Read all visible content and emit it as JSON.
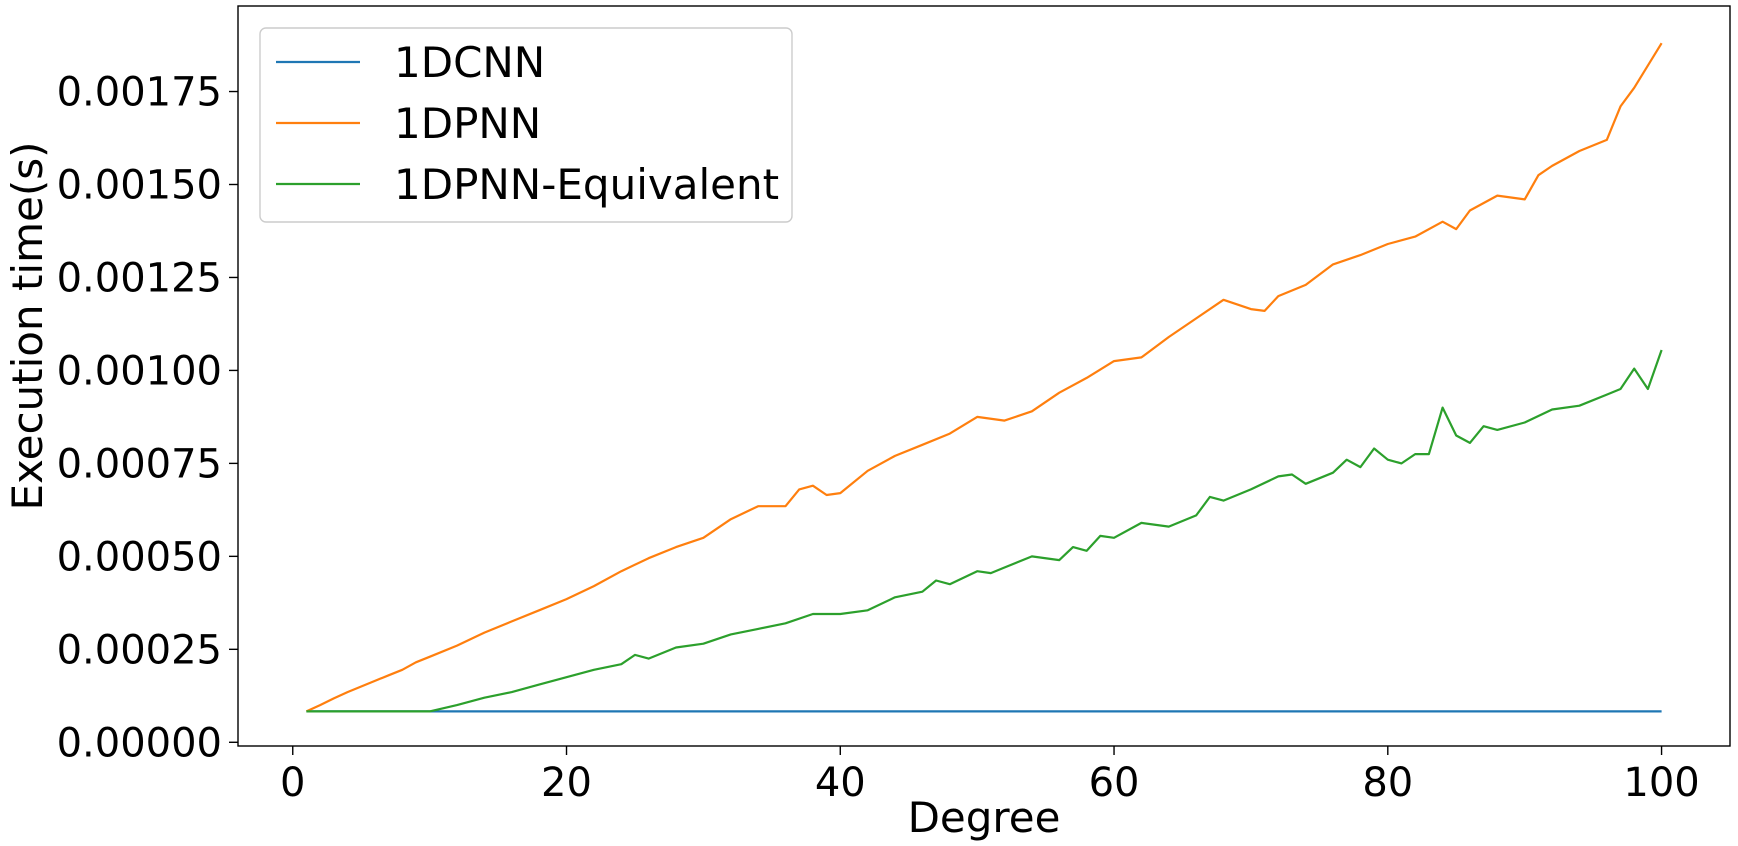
{
  "chart_data": {
    "type": "line",
    "title": "",
    "xlabel": "Degree",
    "ylabel": "Execution time(s)",
    "xlim": [
      -4,
      105
    ],
    "ylim": [
      -1e-05,
      0.00198
    ],
    "x_ticks": [
      0,
      20,
      40,
      60,
      80,
      100
    ],
    "x_tick_labels": [
      "0",
      "20",
      "40",
      "60",
      "80",
      "100"
    ],
    "y_ticks": [
      0,
      0.00025,
      0.0005,
      0.00075,
      0.001,
      0.00125,
      0.0015,
      0.00175
    ],
    "y_tick_labels": [
      "0.00000",
      "0.00025",
      "0.00050",
      "0.00075",
      "0.00100",
      "0.00125",
      "0.00150",
      "0.00175"
    ],
    "grid": false,
    "legend_position": "top-left",
    "series": [
      {
        "name": "1DCNN",
        "color": "#1f77b4",
        "x": [
          1,
          100
        ],
        "y": [
          8.3e-05,
          8.3e-05
        ]
      },
      {
        "name": "1DPNN",
        "color": "#ff7f0e",
        "x": [
          1,
          2,
          3,
          4,
          5,
          6,
          7,
          8,
          9,
          10,
          12,
          14,
          16,
          18,
          20,
          22,
          24,
          26,
          28,
          30,
          32,
          34,
          36,
          37,
          38,
          39,
          40,
          42,
          44,
          46,
          48,
          50,
          52,
          54,
          56,
          58,
          60,
          62,
          64,
          66,
          68,
          70,
          71,
          72,
          74,
          76,
          78,
          80,
          82,
          84,
          85,
          86,
          88,
          90,
          91,
          92,
          94,
          96,
          97,
          98,
          100
        ],
        "y": [
          8.3e-05,
          0.0001,
          0.000118,
          0.000135,
          0.00015,
          0.000165,
          0.00018,
          0.000195,
          0.000215,
          0.00023,
          0.00026,
          0.000295,
          0.000325,
          0.000355,
          0.000385,
          0.00042,
          0.00046,
          0.000495,
          0.000525,
          0.00055,
          0.0006,
          0.000635,
          0.000635,
          0.00068,
          0.00069,
          0.000665,
          0.00067,
          0.00073,
          0.00077,
          0.0008,
          0.00083,
          0.000875,
          0.000865,
          0.00089,
          0.00094,
          0.00098,
          0.001025,
          0.001035,
          0.00109,
          0.00114,
          0.00119,
          0.001165,
          0.00116,
          0.0012,
          0.00123,
          0.001285,
          0.00131,
          0.00134,
          0.00136,
          0.0014,
          0.00138,
          0.00143,
          0.00147,
          0.00146,
          0.001525,
          0.00155,
          0.00159,
          0.00162,
          0.00171,
          0.00176,
          0.00188
        ]
      },
      {
        "name": "1DPNN-Equivalent",
        "color": "#2ca02c",
        "x": [
          1,
          10,
          12,
          14,
          16,
          18,
          20,
          22,
          24,
          25,
          26,
          28,
          30,
          32,
          34,
          36,
          38,
          40,
          42,
          44,
          46,
          47,
          48,
          50,
          51,
          52,
          54,
          56,
          57,
          58,
          59,
          60,
          62,
          64,
          66,
          67,
          68,
          70,
          72,
          73,
          74,
          76,
          77,
          78,
          79,
          80,
          81,
          82,
          83,
          84,
          85,
          86,
          87,
          88,
          90,
          92,
          94,
          96,
          97,
          98,
          99,
          100
        ],
        "y": [
          8.3e-05,
          8.3e-05,
          0.0001,
          0.00012,
          0.000135,
          0.000155,
          0.000175,
          0.000195,
          0.00021,
          0.000235,
          0.000225,
          0.000255,
          0.000265,
          0.00029,
          0.000305,
          0.00032,
          0.000345,
          0.000345,
          0.000355,
          0.00039,
          0.000405,
          0.000435,
          0.000425,
          0.00046,
          0.000455,
          0.00047,
          0.0005,
          0.00049,
          0.000525,
          0.000515,
          0.000555,
          0.00055,
          0.00059,
          0.00058,
          0.00061,
          0.00066,
          0.00065,
          0.00068,
          0.000715,
          0.00072,
          0.000695,
          0.000725,
          0.00076,
          0.00074,
          0.00079,
          0.00076,
          0.00075,
          0.000775,
          0.000775,
          0.0009,
          0.000825,
          0.000805,
          0.00085,
          0.00084,
          0.00086,
          0.000895,
          0.000905,
          0.000935,
          0.00095,
          0.001005,
          0.00095,
          0.001055
        ]
      }
    ]
  }
}
